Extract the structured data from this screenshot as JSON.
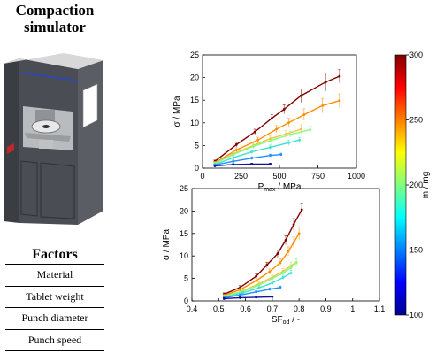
{
  "simulator": {
    "title_line1": "Compaction",
    "title_line2": "simulator"
  },
  "factors": {
    "heading": "Factors",
    "items": [
      "Material",
      "Tablet weight",
      "Punch diameter",
      "Punch speed"
    ]
  },
  "colorbar": {
    "label": "m / mg",
    "min": 100,
    "max": 300,
    "ticks": [
      100,
      150,
      200,
      250,
      300
    ],
    "colormap": "jet"
  },
  "chart_data": [
    {
      "type": "line",
      "xlabel_main": "P",
      "xlabel_sub": "max",
      "xlabel_unit": " / MPa",
      "ylabel": "σ / MPa",
      "xlim": [
        0,
        1000
      ],
      "ylim": [
        0,
        25
      ],
      "xticks": [
        0,
        250,
        500,
        750,
        1000
      ],
      "yticks": [
        0,
        5,
        10,
        15,
        20,
        25
      ],
      "series": [
        {
          "m": 300,
          "color": "#800000",
          "x": [
            80,
            220,
            340,
            450,
            530,
            640,
            800,
            890
          ],
          "y": [
            1.5,
            5.2,
            8.0,
            11.0,
            13.0,
            16.0,
            19.0,
            20.3
          ],
          "err": [
            0.3,
            0.5,
            0.6,
            0.8,
            1.0,
            1.5,
            2.0,
            1.5
          ]
        },
        {
          "m": 270,
          "color": "#ff8c00",
          "x": [
            80,
            220,
            360,
            480,
            560,
            660,
            780,
            890
          ],
          "y": [
            1.2,
            4.0,
            6.2,
            8.6,
            10.0,
            11.8,
            13.8,
            14.9
          ],
          "err": [
            0.3,
            0.5,
            0.6,
            0.8,
            1.0,
            1.3,
            1.6,
            1.5
          ]
        },
        {
          "m": 230,
          "color": "#ffc040",
          "x": [
            80,
            200,
            330,
            440,
            540,
            640
          ],
          "y": [
            1.0,
            3.2,
            5.0,
            6.5,
            7.5,
            8.6
          ],
          "err": [
            0.3,
            0.5,
            0.5,
            0.7,
            0.8,
            1.0
          ]
        },
        {
          "m": 200,
          "color": "#80ff80",
          "x": [
            80,
            200,
            330,
            450,
            570,
            700
          ],
          "y": [
            1.0,
            3.0,
            4.8,
            6.2,
            7.4,
            8.5
          ],
          "err": [
            0.3,
            0.4,
            0.5,
            0.6,
            0.7,
            0.8
          ]
        },
        {
          "m": 180,
          "color": "#40e0d0",
          "x": [
            80,
            200,
            320,
            440,
            560,
            630
          ],
          "y": [
            0.8,
            2.3,
            3.6,
            4.6,
            5.6,
            6.2
          ],
          "err": [
            0.3,
            0.4,
            0.4,
            0.5,
            0.6,
            0.6
          ]
        },
        {
          "m": 150,
          "color": "#1f8fff",
          "x": [
            80,
            200,
            320,
            440,
            510
          ],
          "y": [
            0.7,
            1.5,
            2.2,
            2.8,
            3.0
          ],
          "err": [
            0.2,
            0.3,
            0.3,
            0.3,
            0.3
          ]
        },
        {
          "m": 110,
          "color": "#1010a0",
          "x": [
            80,
            200,
            320,
            440
          ],
          "y": [
            0.5,
            0.8,
            0.9,
            0.9
          ],
          "err": [
            0.2,
            0.2,
            0.2,
            0.2
          ]
        }
      ]
    },
    {
      "type": "line",
      "xlabel_main": "SF",
      "xlabel_sub": "od",
      "xlabel_unit": " / -",
      "ylabel": "σ / MPa",
      "xlim": [
        0.4,
        1.1
      ],
      "ylim": [
        0,
        25
      ],
      "xticks": [
        0.4,
        0.5,
        0.6,
        0.7,
        0.8,
        0.9,
        1.0,
        1.1
      ],
      "yticks": [
        0,
        5,
        10,
        15,
        20,
        25
      ],
      "series": [
        {
          "m": 300,
          "color": "#800000",
          "x": [
            0.52,
            0.58,
            0.64,
            0.68,
            0.72,
            0.75,
            0.78,
            0.81
          ],
          "y": [
            1.5,
            3.0,
            5.5,
            8.0,
            10.5,
            13.5,
            17.0,
            20.3
          ],
          "err": [
            0.3,
            0.4,
            0.5,
            0.6,
            0.8,
            1.0,
            1.3,
            1.5
          ]
        },
        {
          "m": 270,
          "color": "#ff8c00",
          "x": [
            0.52,
            0.58,
            0.64,
            0.69,
            0.73,
            0.76,
            0.78,
            0.8
          ],
          "y": [
            1.2,
            2.5,
            4.5,
            6.5,
            8.5,
            11.0,
            13.0,
            15.0
          ],
          "err": [
            0.3,
            0.4,
            0.5,
            0.6,
            0.8,
            1.0,
            1.2,
            1.5
          ]
        },
        {
          "m": 230,
          "color": "#ffc040",
          "x": [
            0.52,
            0.59,
            0.65,
            0.7,
            0.74,
            0.77,
            0.79
          ],
          "y": [
            1.0,
            2.2,
            3.8,
            5.3,
            6.6,
            7.8,
            8.6
          ],
          "err": [
            0.3,
            0.3,
            0.4,
            0.5,
            0.6,
            0.8,
            1.0
          ]
        },
        {
          "m": 200,
          "color": "#80ff80",
          "x": [
            0.52,
            0.59,
            0.65,
            0.7,
            0.74,
            0.77,
            0.79
          ],
          "y": [
            1.0,
            2.1,
            3.5,
            5.0,
            6.2,
            7.4,
            8.5
          ],
          "err": [
            0.3,
            0.3,
            0.4,
            0.5,
            0.6,
            0.7,
            0.8
          ]
        },
        {
          "m": 180,
          "color": "#40e0d0",
          "x": [
            0.52,
            0.59,
            0.65,
            0.7,
            0.74,
            0.77
          ],
          "y": [
            0.8,
            1.8,
            2.9,
            4.0,
            5.2,
            6.2
          ],
          "err": [
            0.3,
            0.3,
            0.4,
            0.5,
            0.5,
            0.6
          ]
        },
        {
          "m": 150,
          "color": "#1f8fff",
          "x": [
            0.52,
            0.58,
            0.64,
            0.69,
            0.73
          ],
          "y": [
            0.7,
            1.3,
            2.0,
            2.6,
            3.0
          ],
          "err": [
            0.2,
            0.3,
            0.3,
            0.3,
            0.3
          ]
        },
        {
          "m": 110,
          "color": "#1010a0",
          "x": [
            0.52,
            0.58,
            0.64,
            0.7
          ],
          "y": [
            0.5,
            0.7,
            0.8,
            0.9
          ],
          "err": [
            0.2,
            0.2,
            0.2,
            0.2
          ]
        }
      ]
    }
  ]
}
